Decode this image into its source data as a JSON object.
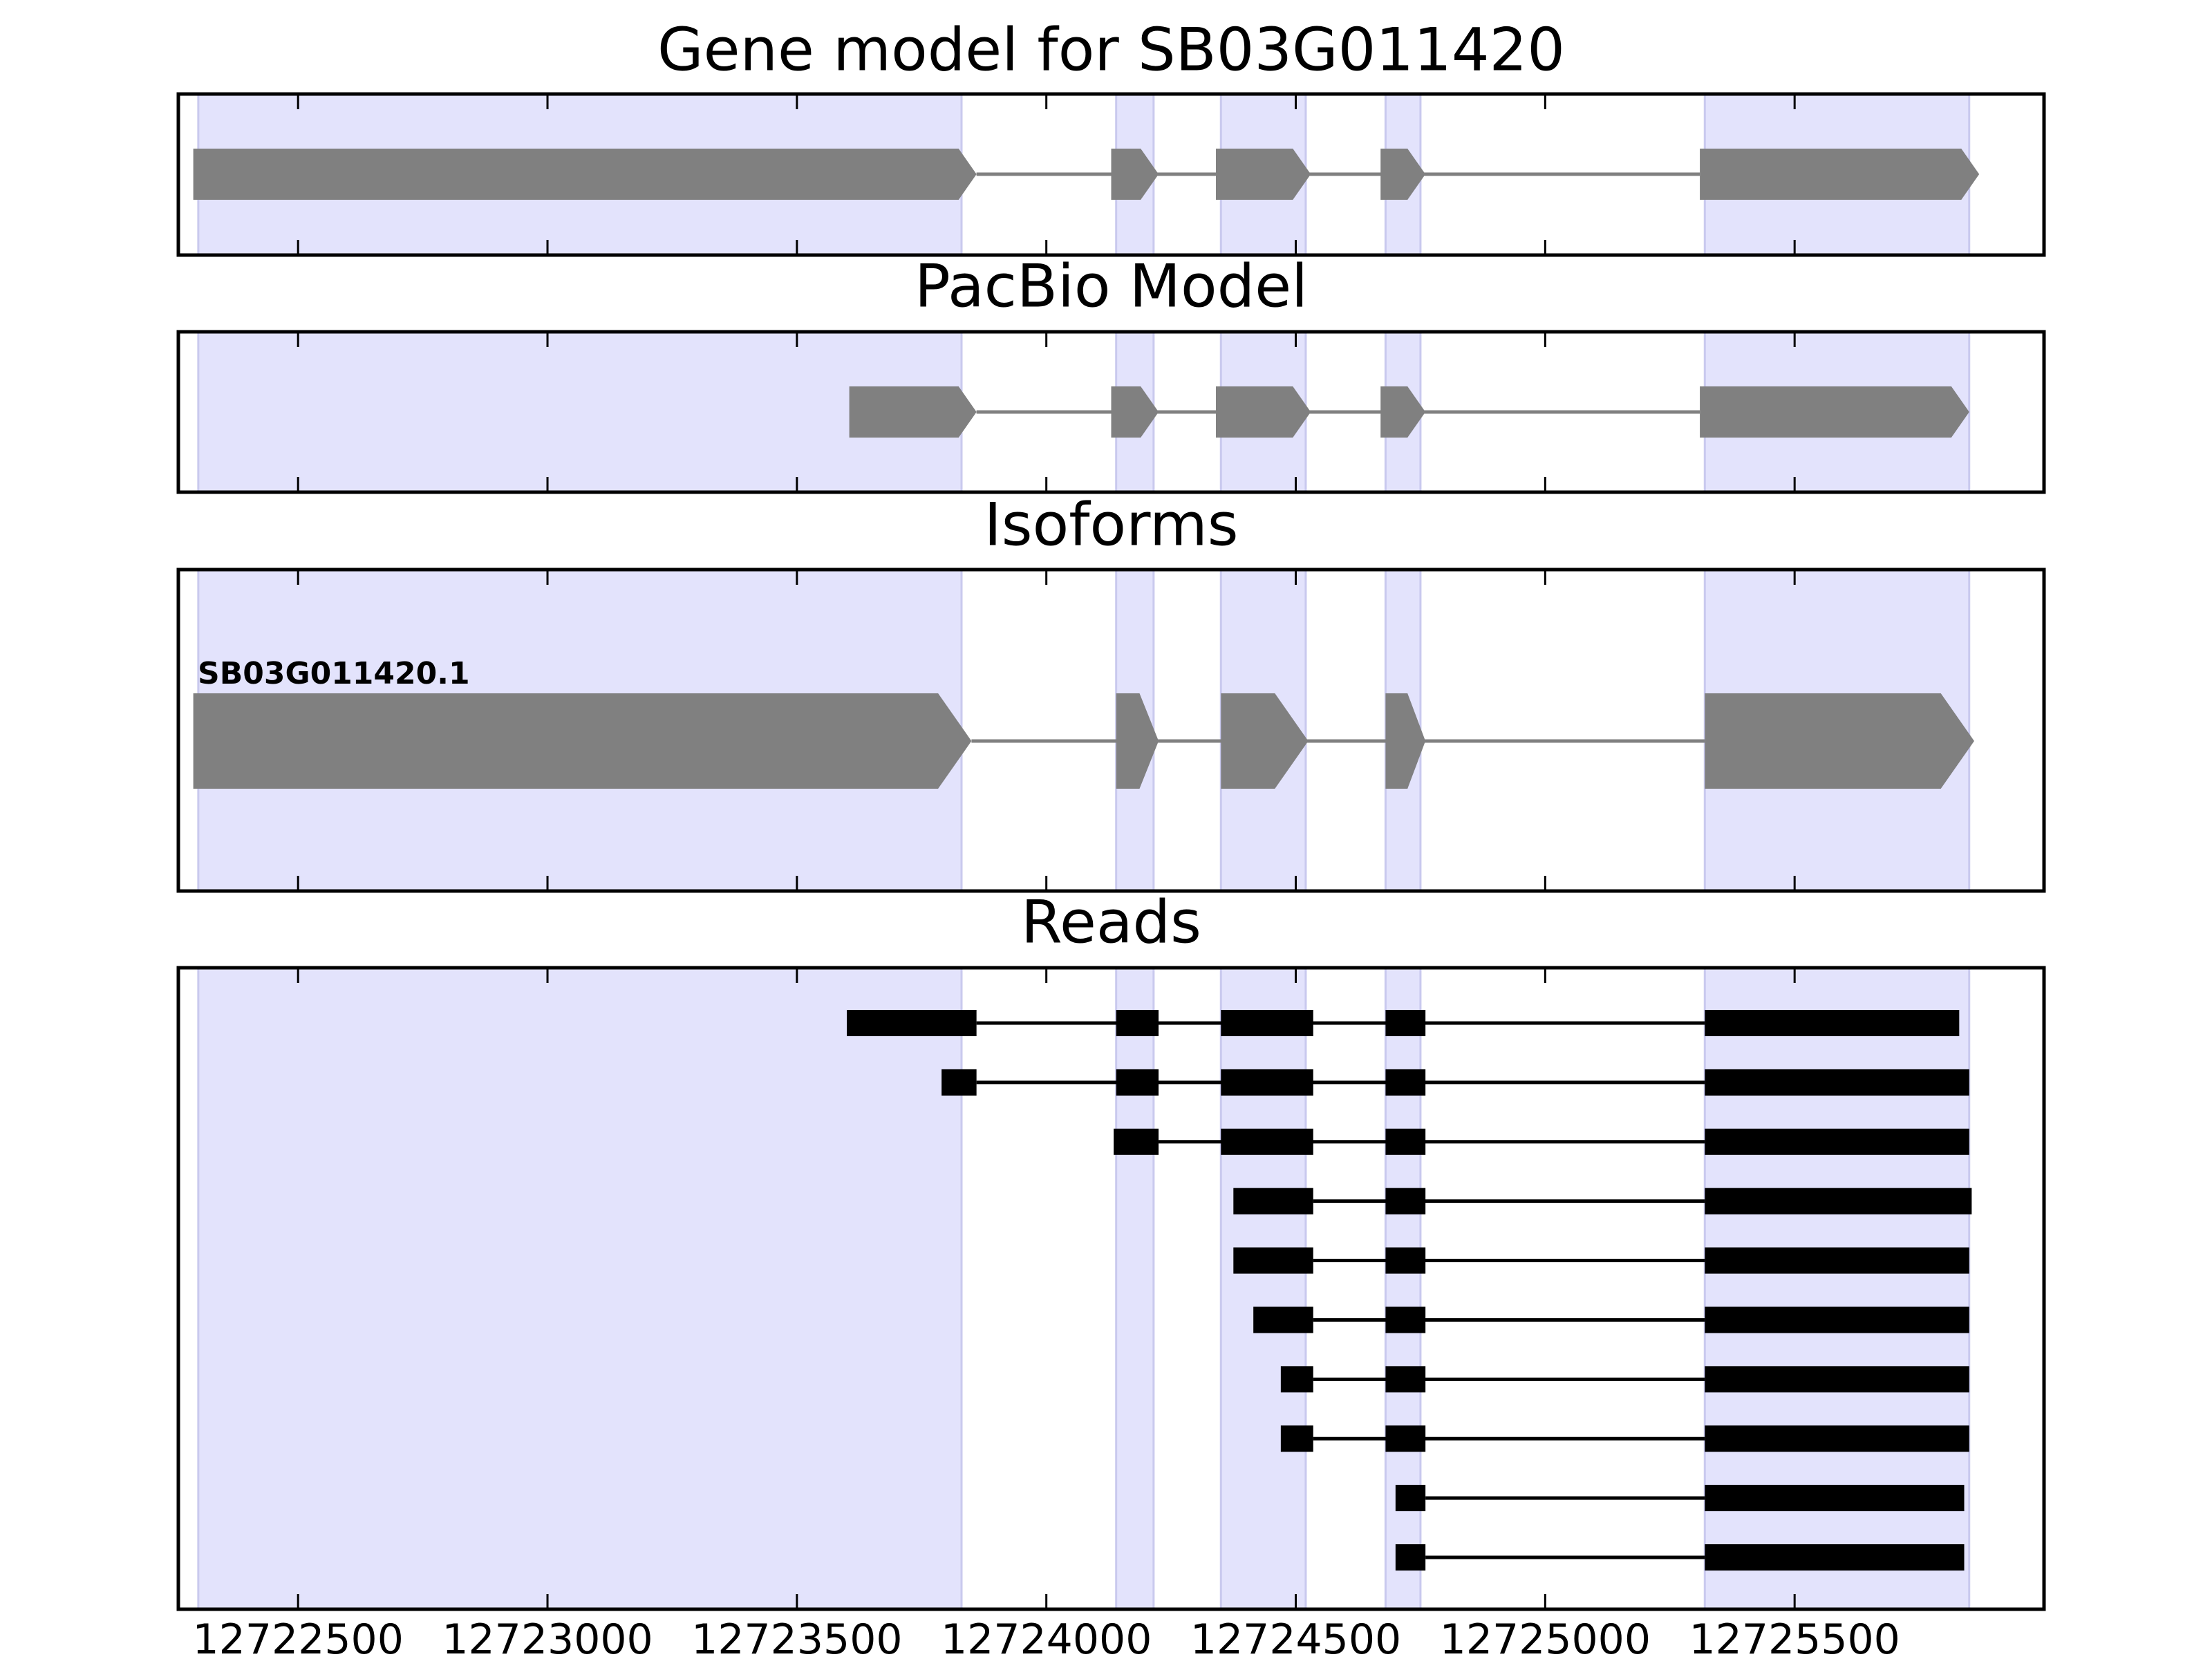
{
  "chart_data": {
    "type": "gene-model-tracks",
    "x_range": [
      12722260,
      12726000
    ],
    "x_ticks": [
      12722500,
      12723000,
      12723500,
      12724000,
      12724500,
      12725000,
      12725500
    ],
    "exon_bands": [
      [
        12722300,
        12723830
      ],
      [
        12724140,
        12724215
      ],
      [
        12724350,
        12724520
      ],
      [
        12724680,
        12724750
      ],
      [
        12725320,
        12725850
      ]
    ],
    "panels": [
      {
        "id": "gene-model",
        "title": "Gene model for SB03G011420",
        "style": "arrow",
        "rows": [
          {
            "label": "",
            "exons": [
              [
                12722290,
                12723860
              ],
              [
                12724130,
                12724225
              ],
              [
                12724340,
                12724530
              ],
              [
                12724670,
                12724760
              ],
              [
                12725310,
                12725870
              ]
            ]
          }
        ]
      },
      {
        "id": "pacbio-model",
        "title": "PacBio Model",
        "style": "arrow",
        "rows": [
          {
            "label": "",
            "exons": [
              [
                12723605,
                12723860
              ],
              [
                12724130,
                12724225
              ],
              [
                12724340,
                12724530
              ],
              [
                12724670,
                12724760
              ],
              [
                12725310,
                12725850
              ]
            ]
          }
        ]
      },
      {
        "id": "isoforms",
        "title": "Isoforms",
        "style": "arrow",
        "rows": [
          {
            "label": "SB03G011420.1",
            "exons": [
              [
                12722290,
                12723850
              ],
              [
                12724140,
                12724225
              ],
              [
                12724350,
                12724525
              ],
              [
                12724680,
                12724760
              ],
              [
                12725320,
                12725860
              ]
            ]
          }
        ]
      },
      {
        "id": "reads",
        "title": "Reads",
        "style": "block",
        "rows": [
          {
            "label": "",
            "exons": [
              [
                12723600,
                12723860
              ],
              [
                12724140,
                12724225
              ],
              [
                12724350,
                12724535
              ],
              [
                12724680,
                12724760
              ],
              [
                12725320,
                12725830
              ]
            ]
          },
          {
            "label": "",
            "exons": [
              [
                12723790,
                12723860
              ],
              [
                12724140,
                12724225
              ],
              [
                12724350,
                12724535
              ],
              [
                12724680,
                12724760
              ],
              [
                12725320,
                12725850
              ]
            ]
          },
          {
            "label": "",
            "exons": [
              [
                12724135,
                12724225
              ],
              [
                12724350,
                12724535
              ],
              [
                12724680,
                12724760
              ],
              [
                12725320,
                12725850
              ]
            ]
          },
          {
            "label": "",
            "exons": [
              [
                12724375,
                12724535
              ],
              [
                12724680,
                12724760
              ],
              [
                12725320,
                12725855
              ]
            ]
          },
          {
            "label": "",
            "exons": [
              [
                12724375,
                12724535
              ],
              [
                12724680,
                12724760
              ],
              [
                12725320,
                12725850
              ]
            ]
          },
          {
            "label": "",
            "exons": [
              [
                12724415,
                12724535
              ],
              [
                12724680,
                12724760
              ],
              [
                12725320,
                12725850
              ]
            ]
          },
          {
            "label": "",
            "exons": [
              [
                12724470,
                12724535
              ],
              [
                12724680,
                12724760
              ],
              [
                12725320,
                12725850
              ]
            ]
          },
          {
            "label": "",
            "exons": [
              [
                12724470,
                12724535
              ],
              [
                12724680,
                12724760
              ],
              [
                12725320,
                12725850
              ]
            ]
          },
          {
            "label": "",
            "exons": [
              [
                12724700,
                12724760
              ],
              [
                12725320,
                12725840
              ]
            ]
          },
          {
            "label": "",
            "exons": [
              [
                12724700,
                12724760
              ],
              [
                12725320,
                12725840
              ]
            ]
          }
        ]
      }
    ],
    "colors": {
      "band": "#e3e3fc",
      "band_edge": "#c9c9ee",
      "arrow_feature": "#808080",
      "read_feature": "#000000",
      "frame": "#000000"
    }
  }
}
